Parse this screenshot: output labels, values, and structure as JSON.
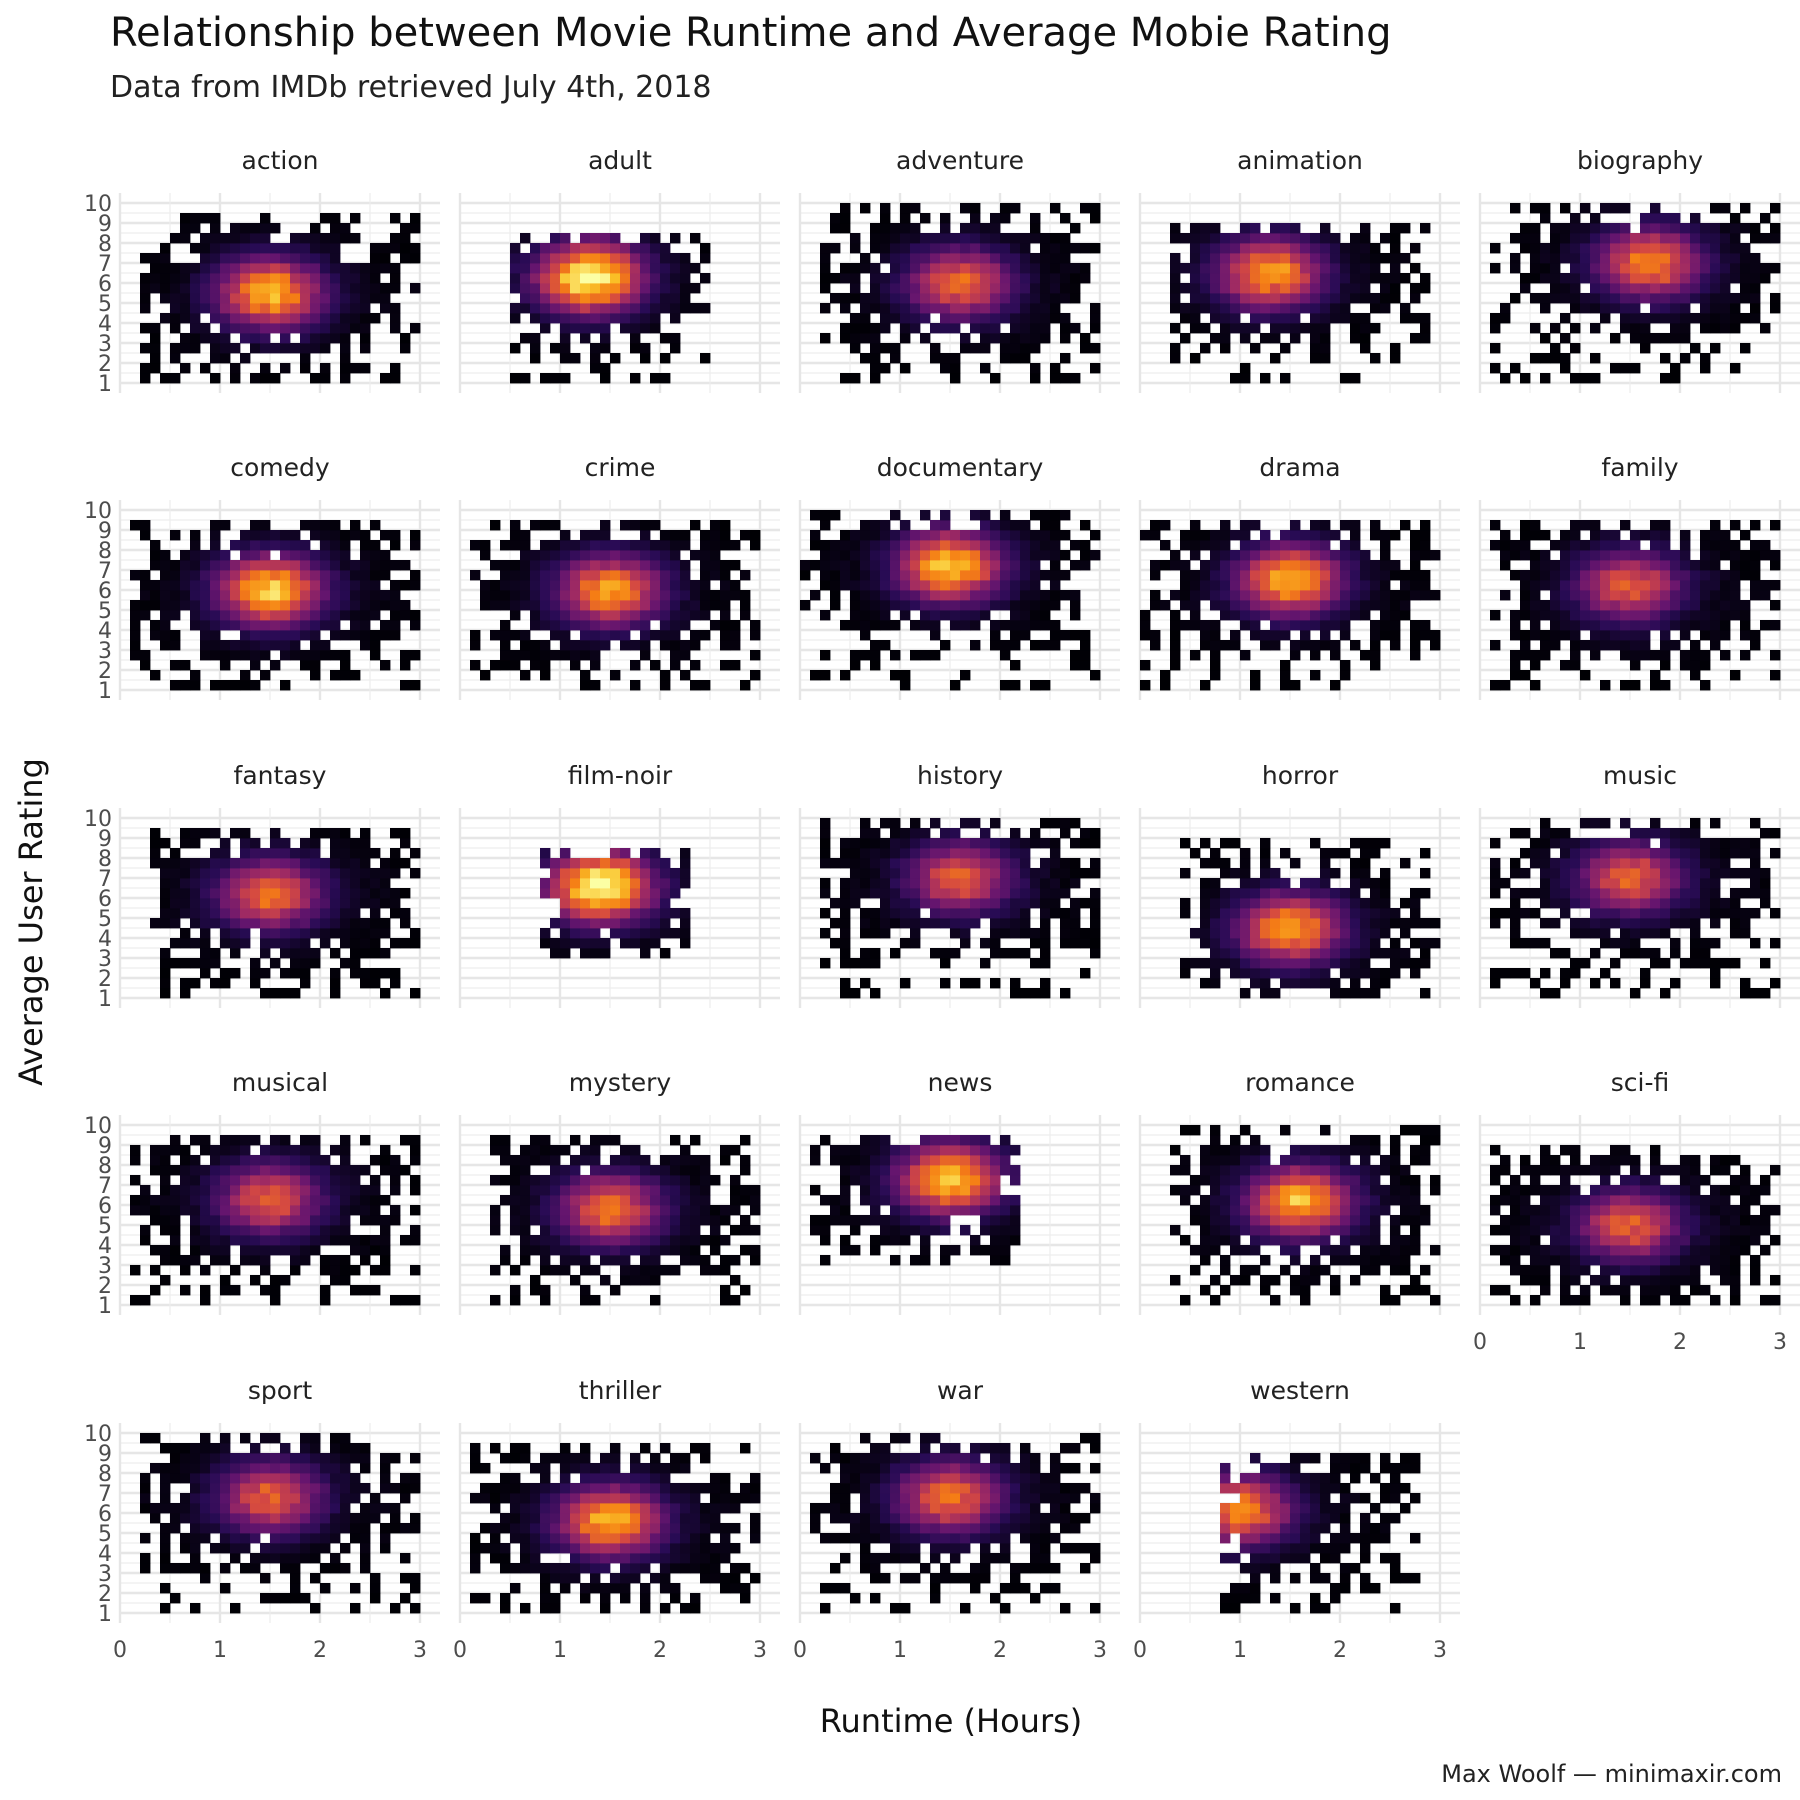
{
  "title": "Relationship between Movie Runtime and Average Mobie Rating",
  "subtitle": "Data from IMDb retrieved July 4th, 2018",
  "caption": "Max Woolf — minimaxir.com",
  "chart_data": {
    "type": "heatmap",
    "subtype": "faceted 2D bin density",
    "xlabel": "Runtime (Hours)",
    "ylabel": "Average User Rating",
    "xlim": [
      0,
      3.2
    ],
    "ylim": [
      1,
      10
    ],
    "x_ticks": [
      0,
      1,
      2,
      3
    ],
    "y_ticks": [
      1,
      2,
      3,
      4,
      5,
      6,
      7,
      8,
      9,
      10
    ],
    "grid": true,
    "colormap": "inferno",
    "colors": {
      "low": "#000004",
      "mid": "#bb3754",
      "high": "#fcffa4"
    },
    "facets": [
      {
        "name": "action",
        "x_range": [
          0.2,
          3.0
        ],
        "y_range": [
          1.0,
          9.5
        ],
        "peak": [
          1.5,
          5.5
        ],
        "peak_intensity": 0.8
      },
      {
        "name": "adult",
        "x_range": [
          0.5,
          2.5
        ],
        "y_range": [
          1.0,
          8.5
        ],
        "peak": [
          1.3,
          6.3
        ],
        "peak_intensity": 1.0
      },
      {
        "name": "adventure",
        "x_range": [
          0.2,
          3.0
        ],
        "y_range": [
          1.0,
          9.8
        ],
        "peak": [
          1.6,
          6.0
        ],
        "peak_intensity": 0.65
      },
      {
        "name": "animation",
        "x_range": [
          0.3,
          2.9
        ],
        "y_range": [
          1.0,
          9.2
        ],
        "peak": [
          1.3,
          6.5
        ],
        "peak_intensity": 0.75
      },
      {
        "name": "biography",
        "x_range": [
          0.1,
          3.0
        ],
        "y_range": [
          1.0,
          9.8
        ],
        "peak": [
          1.7,
          7.0
        ],
        "peak_intensity": 0.7
      },
      {
        "name": "comedy",
        "x_range": [
          0.1,
          3.0
        ],
        "y_range": [
          1.0,
          9.6
        ],
        "peak": [
          1.5,
          6.0
        ],
        "peak_intensity": 0.85
      },
      {
        "name": "crime",
        "x_range": [
          0.1,
          3.0
        ],
        "y_range": [
          1.0,
          9.5
        ],
        "peak": [
          1.5,
          6.0
        ],
        "peak_intensity": 0.75
      },
      {
        "name": "documentary",
        "x_range": [
          0.0,
          3.0
        ],
        "y_range": [
          1.0,
          9.8
        ],
        "peak": [
          1.5,
          7.2
        ],
        "peak_intensity": 0.85
      },
      {
        "name": "drama",
        "x_range": [
          0.0,
          3.0
        ],
        "y_range": [
          1.0,
          9.6
        ],
        "peak": [
          1.5,
          6.5
        ],
        "peak_intensity": 0.8
      },
      {
        "name": "family",
        "x_range": [
          0.1,
          3.0
        ],
        "y_range": [
          1.0,
          9.5
        ],
        "peak": [
          1.5,
          6.2
        ],
        "peak_intensity": 0.6
      },
      {
        "name": "fantasy",
        "x_range": [
          0.3,
          3.0
        ],
        "y_range": [
          1.0,
          9.6
        ],
        "peak": [
          1.5,
          6.2
        ],
        "peak_intensity": 0.65
      },
      {
        "name": "film-noir",
        "x_range": [
          0.8,
          2.3
        ],
        "y_range": [
          2.8,
          8.5
        ],
        "peak": [
          1.4,
          6.6
        ],
        "peak_intensity": 1.0
      },
      {
        "name": "history",
        "x_range": [
          0.2,
          3.0
        ],
        "y_range": [
          1.0,
          9.8
        ],
        "peak": [
          1.6,
          7.0
        ],
        "peak_intensity": 0.6
      },
      {
        "name": "horror",
        "x_range": [
          0.4,
          3.0
        ],
        "y_range": [
          1.0,
          9.0
        ],
        "peak": [
          1.5,
          4.5
        ],
        "peak_intensity": 0.75
      },
      {
        "name": "music",
        "x_range": [
          0.1,
          3.0
        ],
        "y_range": [
          1.0,
          9.8
        ],
        "peak": [
          1.5,
          7.0
        ],
        "peak_intensity": 0.6
      },
      {
        "name": "musical",
        "x_range": [
          0.1,
          3.0
        ],
        "y_range": [
          1.0,
          9.5
        ],
        "peak": [
          1.5,
          6.3
        ],
        "peak_intensity": 0.6
      },
      {
        "name": "mystery",
        "x_range": [
          0.3,
          3.0
        ],
        "y_range": [
          1.0,
          9.5
        ],
        "peak": [
          1.5,
          5.8
        ],
        "peak_intensity": 0.65
      },
      {
        "name": "news",
        "x_range": [
          0.1,
          2.2
        ],
        "y_range": [
          3.0,
          9.5
        ],
        "peak": [
          1.5,
          7.3
        ],
        "peak_intensity": 0.85
      },
      {
        "name": "romance",
        "x_range": [
          0.3,
          3.0
        ],
        "y_range": [
          1.0,
          9.8
        ],
        "peak": [
          1.6,
          6.2
        ],
        "peak_intensity": 0.8
      },
      {
        "name": "sci-fi",
        "x_range": [
          0.1,
          3.0
        ],
        "y_range": [
          1.0,
          9.0
        ],
        "peak": [
          1.5,
          5.0
        ],
        "peak_intensity": 0.6
      },
      {
        "name": "sport",
        "x_range": [
          0.2,
          3.0
        ],
        "y_range": [
          1.0,
          9.8
        ],
        "peak": [
          1.5,
          6.8
        ],
        "peak_intensity": 0.6
      },
      {
        "name": "thriller",
        "x_range": [
          0.1,
          3.0
        ],
        "y_range": [
          1.0,
          9.6
        ],
        "peak": [
          1.5,
          5.6
        ],
        "peak_intensity": 0.8
      },
      {
        "name": "war",
        "x_range": [
          0.1,
          3.0
        ],
        "y_range": [
          1.0,
          9.8
        ],
        "peak": [
          1.5,
          6.8
        ],
        "peak_intensity": 0.65
      },
      {
        "name": "western",
        "x_range": [
          0.8,
          2.8
        ],
        "y_range": [
          1.0,
          8.8
        ],
        "peak": [
          1.0,
          6.2
        ],
        "peak_intensity": 0.7
      }
    ]
  }
}
